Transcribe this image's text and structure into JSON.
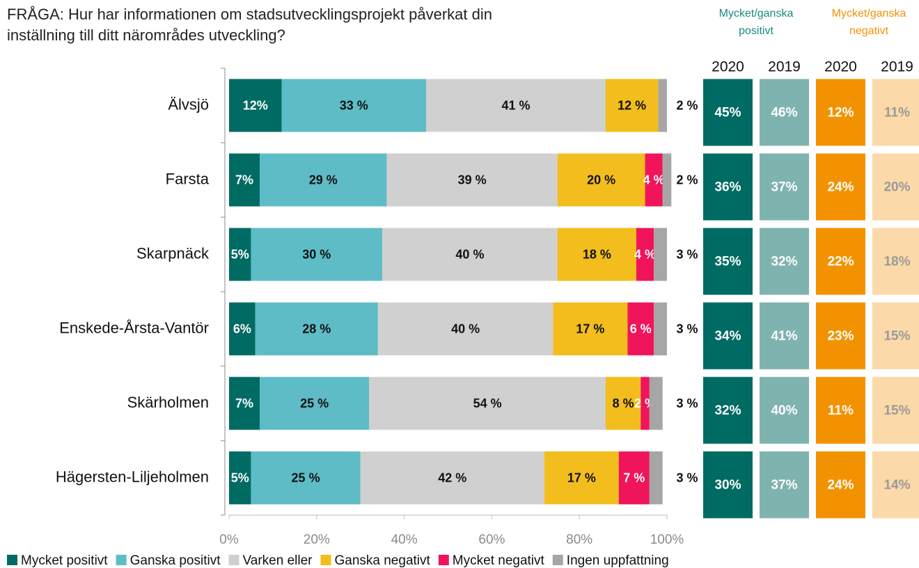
{
  "chart_data": {
    "type": "stacked_bar_horizontal",
    "title_lines": [
      "FRÅGA: Hur har informationen om stadsutvecklingsprojekt påverkat din",
      "inställning till ditt närområdes utveckling?"
    ],
    "categories": [
      "Älvsjö",
      "Farsta",
      "Skarpnäck",
      "Enskede-Årsta-Vantör",
      "Skärholmen",
      "Hägersten-Liljeholmen"
    ],
    "series": [
      {
        "name": "Mycket positivt",
        "color": "#006b63",
        "label_color": "#ffffff",
        "values": [
          12,
          7,
          5,
          6,
          7,
          5
        ],
        "value_labels": [
          "12%",
          "7%",
          "5%",
          "6%",
          "7%",
          "5%"
        ]
      },
      {
        "name": "Ganska positivt",
        "color": "#5ebcc6",
        "label_color": "#111111",
        "values": [
          33,
          29,
          30,
          28,
          25,
          25
        ],
        "value_labels": [
          "33 %",
          "29 %",
          "30 %",
          "28 %",
          "25 %",
          "25 %"
        ]
      },
      {
        "name": "Varken eller",
        "color": "#d0d0d0",
        "label_color": "#111111",
        "values": [
          41,
          39,
          40,
          40,
          54,
          42
        ],
        "value_labels": [
          "41 %",
          "39 %",
          "40 %",
          "40 %",
          "54 %",
          "42 %"
        ]
      },
      {
        "name": "Ganska negativt",
        "color": "#f2bd1d",
        "label_color": "#111111",
        "values": [
          12,
          20,
          18,
          17,
          8,
          17
        ],
        "value_labels": [
          "12 %",
          "20 %",
          "18 %",
          "17 %",
          "8 %",
          "17 %"
        ]
      },
      {
        "name": "Mycket negativt",
        "color": "#f0145a",
        "label_color": "#ffffff",
        "values": [
          0,
          4,
          4,
          6,
          2,
          7
        ],
        "value_labels": [
          null,
          "4 %",
          "4 %",
          "6 %",
          "2 %",
          "7 %"
        ]
      },
      {
        "name": "Ingen uppfattning",
        "color": "#a6a6a6",
        "label_color": "#111111",
        "values": [
          2,
          2,
          3,
          3,
          3,
          3
        ],
        "value_labels": [
          "2 %",
          "2 %",
          "3 %",
          "3 %",
          "3 %",
          "3 %"
        ]
      }
    ],
    "xlim": [
      0,
      100
    ],
    "xticks": [
      {
        "value": 0,
        "label": "0%"
      },
      {
        "value": 20,
        "label": "20%"
      },
      {
        "value": 40,
        "label": "40%"
      },
      {
        "value": 60,
        "label": "60%"
      },
      {
        "value": 80,
        "label": "80%"
      },
      {
        "value": 100,
        "label": "100%"
      }
    ],
    "summary": {
      "groups": [
        {
          "lines": [
            "Mycket/ganska",
            "positivt"
          ],
          "color": "#1a8a80"
        },
        {
          "lines": [
            "Mycket/ganska",
            "negativt"
          ],
          "color": "#f39200"
        }
      ],
      "columns": [
        {
          "year": "2020",
          "color": "#006b63",
          "text_color": "#ffffff",
          "values": [
            "45%",
            "36%",
            "35%",
            "34%",
            "32%",
            "30%"
          ]
        },
        {
          "year": "2019",
          "color": "#7fb3b0",
          "text_color": "#ffffff",
          "values": [
            "46%",
            "37%",
            "32%",
            "41%",
            "40%",
            "37%"
          ]
        },
        {
          "year": "2020",
          "color": "#f39200",
          "text_color": "#ffffff",
          "values": [
            "12%",
            "24%",
            "22%",
            "23%",
            "11%",
            "24%"
          ]
        },
        {
          "year": "2019",
          "color": "#fcd9a8",
          "text_color": "#9a9a9a",
          "values": [
            "11%",
            "20%",
            "18%",
            "15%",
            "15%",
            "14%"
          ]
        }
      ]
    }
  }
}
